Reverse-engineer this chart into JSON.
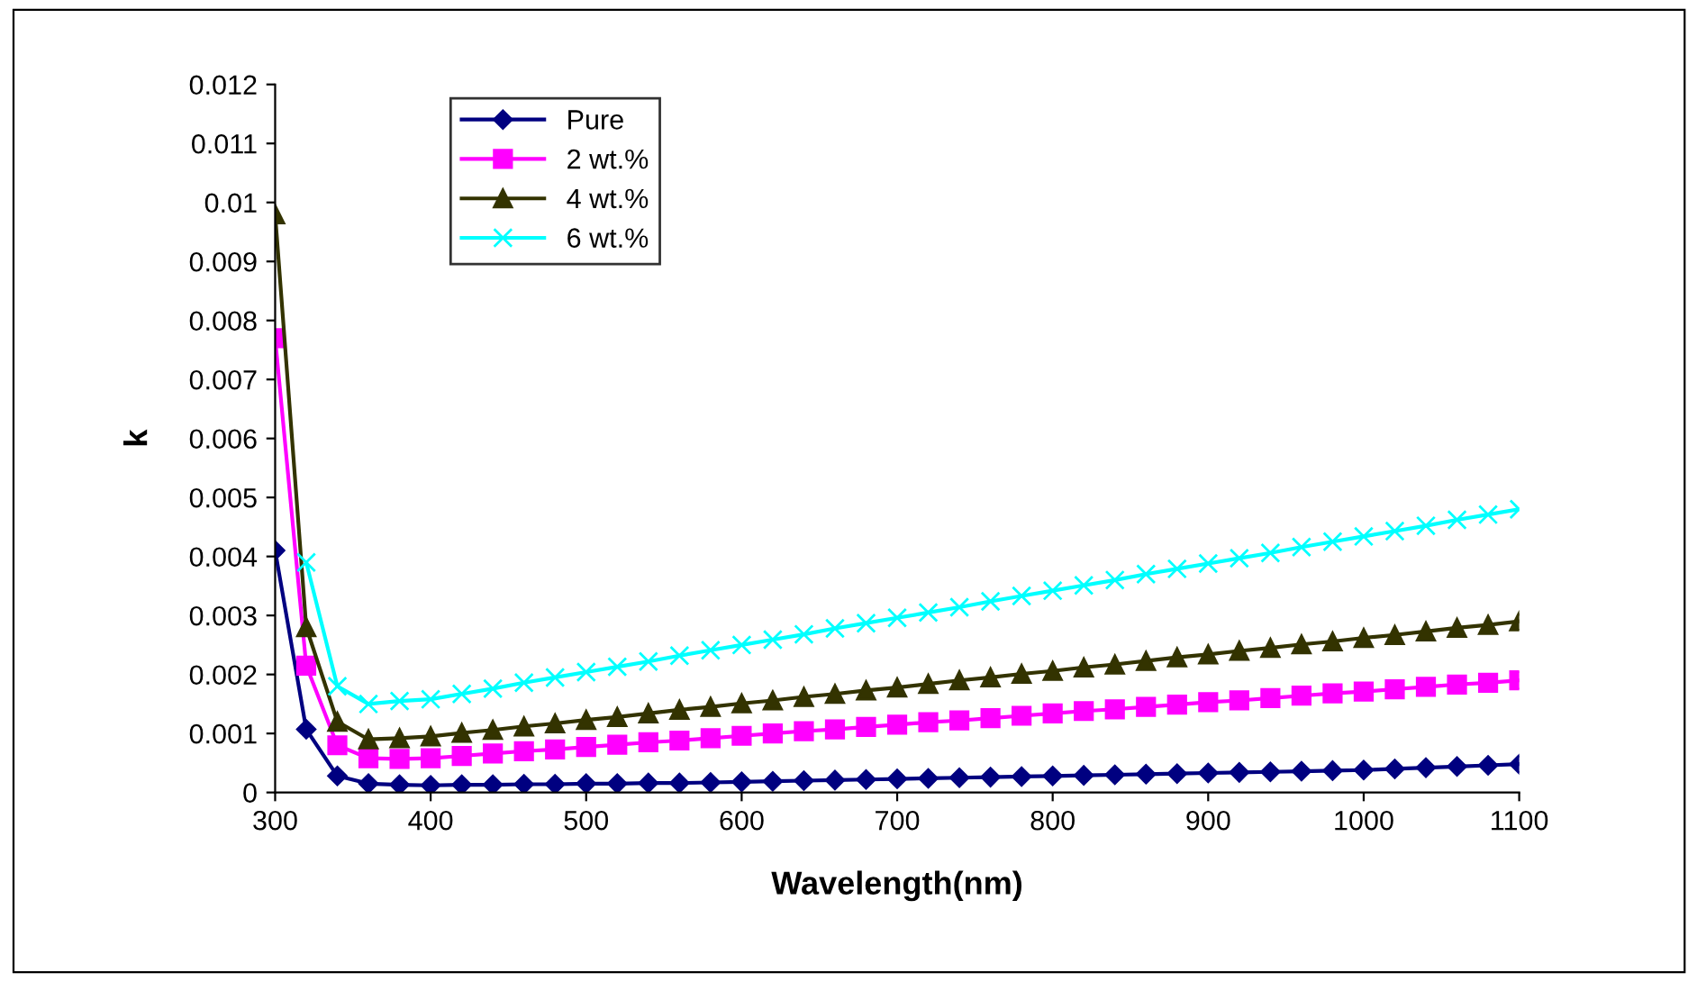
{
  "chart_data": {
    "type": "line",
    "xlabel": "Wavelength(nm)",
    "ylabel": "k",
    "x": [
      300,
      320,
      340,
      360,
      380,
      400,
      420,
      440,
      460,
      480,
      500,
      520,
      540,
      560,
      580,
      600,
      620,
      640,
      660,
      680,
      700,
      720,
      740,
      760,
      780,
      800,
      820,
      840,
      860,
      880,
      900,
      920,
      940,
      960,
      980,
      1000,
      1020,
      1040,
      1060,
      1080,
      1100
    ],
    "series": [
      {
        "name": "Pure",
        "color": "#000080",
        "marker": "diamond",
        "values": [
          0.0041,
          0.00107,
          0.00028,
          0.00015,
          0.00013,
          0.00012,
          0.00013,
          0.00013,
          0.00014,
          0.00014,
          0.00015,
          0.00015,
          0.00016,
          0.00016,
          0.00017,
          0.00018,
          0.00019,
          0.0002,
          0.00021,
          0.00022,
          0.00023,
          0.00024,
          0.00025,
          0.00026,
          0.00027,
          0.00028,
          0.00029,
          0.0003,
          0.00031,
          0.00032,
          0.00033,
          0.00034,
          0.00035,
          0.00036,
          0.00037,
          0.00038,
          0.0004,
          0.00042,
          0.00044,
          0.00046,
          0.00048
        ]
      },
      {
        "name": "2 wt.%",
        "color": "#ff00ff",
        "marker": "square",
        "values": [
          0.0077,
          0.00215,
          0.0008,
          0.00058,
          0.00057,
          0.00058,
          0.00062,
          0.00066,
          0.0007,
          0.00073,
          0.00077,
          0.00081,
          0.00085,
          0.00088,
          0.00092,
          0.00096,
          0.001,
          0.00104,
          0.00107,
          0.00111,
          0.00115,
          0.00119,
          0.00122,
          0.00126,
          0.0013,
          0.00134,
          0.00138,
          0.00141,
          0.00145,
          0.00149,
          0.00153,
          0.00156,
          0.0016,
          0.00164,
          0.00168,
          0.00171,
          0.00175,
          0.00179,
          0.00183,
          0.00186,
          0.0019
        ]
      },
      {
        "name": "4 wt.%",
        "color": "#333300",
        "marker": "triangle",
        "values": [
          0.0098,
          0.0028,
          0.0012,
          0.0009,
          0.00092,
          0.00095,
          0.00101,
          0.00106,
          0.00112,
          0.00117,
          0.00123,
          0.00128,
          0.00134,
          0.0014,
          0.00145,
          0.00151,
          0.00156,
          0.00162,
          0.00167,
          0.00173,
          0.00178,
          0.00184,
          0.0019,
          0.00195,
          0.00201,
          0.00206,
          0.00212,
          0.00217,
          0.00223,
          0.00229,
          0.00234,
          0.0024,
          0.00245,
          0.00251,
          0.00256,
          0.00262,
          0.00267,
          0.00273,
          0.00279,
          0.00284,
          0.0029
        ]
      },
      {
        "name": "6 wt.%",
        "color": "#00ffff",
        "marker": "cross",
        "values": [
          null,
          0.0039,
          0.0018,
          0.0015,
          0.00155,
          0.00158,
          0.00167,
          0.00176,
          0.00186,
          0.00195,
          0.00204,
          0.00213,
          0.00222,
          0.00232,
          0.00241,
          0.0025,
          0.00259,
          0.00268,
          0.00278,
          0.00287,
          0.00296,
          0.00305,
          0.00314,
          0.00324,
          0.00333,
          0.00342,
          0.00351,
          0.0036,
          0.0037,
          0.00379,
          0.00388,
          0.00397,
          0.00406,
          0.00416,
          0.00425,
          0.00434,
          0.00443,
          0.00452,
          0.00462,
          0.00471,
          0.0048
        ]
      }
    ],
    "xlim": [
      300,
      1100
    ],
    "xticks": [
      300,
      400,
      500,
      600,
      700,
      800,
      900,
      1000,
      1100
    ],
    "ylim": [
      0,
      0.012
    ],
    "yticks": [
      0,
      0.001,
      0.002,
      0.003,
      0.004,
      0.005,
      0.006,
      0.007,
      0.008,
      0.009,
      0.01,
      0.011,
      0.012
    ],
    "grid": false,
    "legend": "top left",
    "line_style": "solid"
  }
}
